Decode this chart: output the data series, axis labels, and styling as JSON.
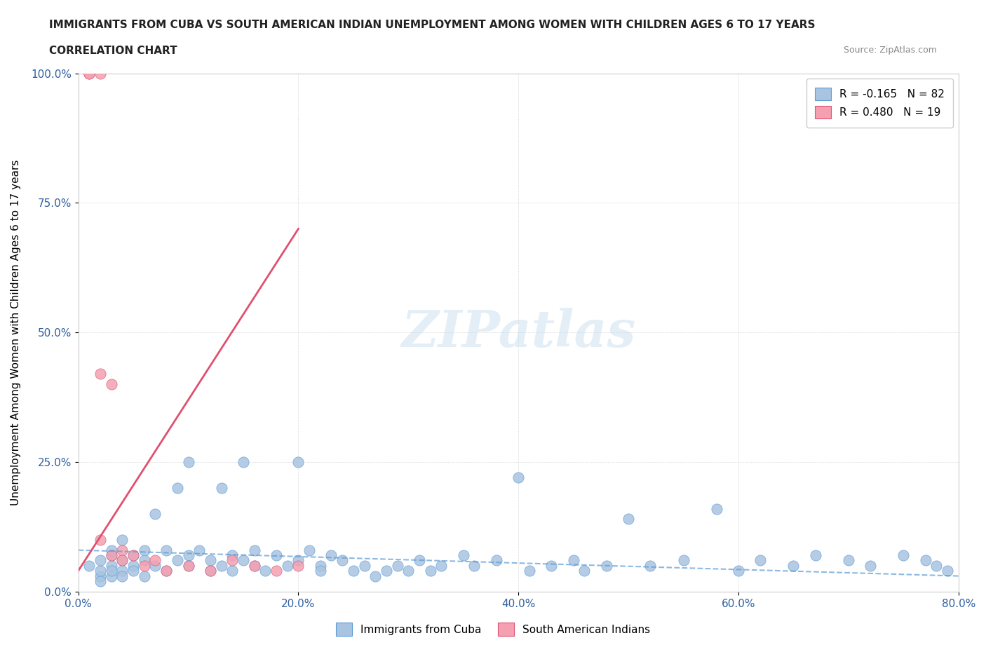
{
  "title": "IMMIGRANTS FROM CUBA VS SOUTH AMERICAN INDIAN UNEMPLOYMENT AMONG WOMEN WITH CHILDREN AGES 6 TO 17 YEARS",
  "subtitle": "CORRELATION CHART",
  "source": "Source: ZipAtlas.com",
  "xlabel": "",
  "ylabel": "Unemployment Among Women with Children Ages 6 to 17 years",
  "xlim": [
    0,
    0.8
  ],
  "ylim": [
    0,
    1.0
  ],
  "xticks": [
    0.0,
    0.2,
    0.4,
    0.6,
    0.8
  ],
  "yticks": [
    0.0,
    0.25,
    0.5,
    0.75,
    1.0
  ],
  "xticklabels": [
    "0.0%",
    "20.0%",
    "40.0%",
    "60.0%",
    "80.0%"
  ],
  "yticklabels": [
    "0.0%",
    "25.0%",
    "50.0%",
    "75.0%",
    "100.0%"
  ],
  "blue_color": "#a8c4e0",
  "pink_color": "#f4a0b0",
  "blue_line_color": "#5b9bd5",
  "pink_line_color": "#e05070",
  "legend_r_blue": "R = -0.165",
  "legend_n_blue": "N = 82",
  "legend_r_pink": "R = 0.480",
  "legend_n_pink": "N = 19",
  "watermark": "ZIPatlas",
  "background_color": "#ffffff",
  "blue_scatter_x": [
    0.01,
    0.02,
    0.02,
    0.02,
    0.02,
    0.03,
    0.03,
    0.03,
    0.03,
    0.03,
    0.04,
    0.04,
    0.04,
    0.04,
    0.05,
    0.05,
    0.05,
    0.06,
    0.06,
    0.06,
    0.07,
    0.07,
    0.08,
    0.08,
    0.09,
    0.09,
    0.1,
    0.1,
    0.1,
    0.11,
    0.12,
    0.12,
    0.13,
    0.13,
    0.14,
    0.14,
    0.15,
    0.15,
    0.16,
    0.16,
    0.17,
    0.18,
    0.19,
    0.2,
    0.2,
    0.21,
    0.22,
    0.22,
    0.23,
    0.24,
    0.25,
    0.26,
    0.27,
    0.28,
    0.29,
    0.3,
    0.31,
    0.32,
    0.33,
    0.35,
    0.36,
    0.38,
    0.4,
    0.41,
    0.43,
    0.45,
    0.46,
    0.48,
    0.5,
    0.52,
    0.55,
    0.58,
    0.6,
    0.62,
    0.65,
    0.67,
    0.7,
    0.72,
    0.75,
    0.77,
    0.78,
    0.79
  ],
  "blue_scatter_y": [
    0.05,
    0.03,
    0.04,
    0.06,
    0.02,
    0.07,
    0.05,
    0.03,
    0.04,
    0.08,
    0.06,
    0.04,
    0.1,
    0.03,
    0.05,
    0.07,
    0.04,
    0.08,
    0.06,
    0.03,
    0.15,
    0.05,
    0.08,
    0.04,
    0.2,
    0.06,
    0.25,
    0.07,
    0.05,
    0.08,
    0.04,
    0.06,
    0.05,
    0.2,
    0.07,
    0.04,
    0.25,
    0.06,
    0.08,
    0.05,
    0.04,
    0.07,
    0.05,
    0.25,
    0.06,
    0.08,
    0.05,
    0.04,
    0.07,
    0.06,
    0.04,
    0.05,
    0.03,
    0.04,
    0.05,
    0.04,
    0.06,
    0.04,
    0.05,
    0.07,
    0.05,
    0.06,
    0.22,
    0.04,
    0.05,
    0.06,
    0.04,
    0.05,
    0.14,
    0.05,
    0.06,
    0.16,
    0.04,
    0.06,
    0.05,
    0.07,
    0.06,
    0.05,
    0.07,
    0.06,
    0.05,
    0.04
  ],
  "pink_scatter_x": [
    0.01,
    0.01,
    0.02,
    0.02,
    0.02,
    0.03,
    0.03,
    0.04,
    0.04,
    0.05,
    0.06,
    0.07,
    0.08,
    0.1,
    0.12,
    0.14,
    0.16,
    0.18,
    0.2
  ],
  "pink_scatter_y": [
    1.0,
    1.0,
    1.0,
    0.42,
    0.1,
    0.4,
    0.07,
    0.08,
    0.06,
    0.07,
    0.05,
    0.06,
    0.04,
    0.05,
    0.04,
    0.06,
    0.05,
    0.04,
    0.05
  ],
  "blue_line_x": [
    0.0,
    0.8
  ],
  "blue_line_y": [
    0.08,
    0.03
  ],
  "pink_line_x": [
    0.0,
    0.2
  ],
  "pink_line_y": [
    0.04,
    0.7
  ]
}
